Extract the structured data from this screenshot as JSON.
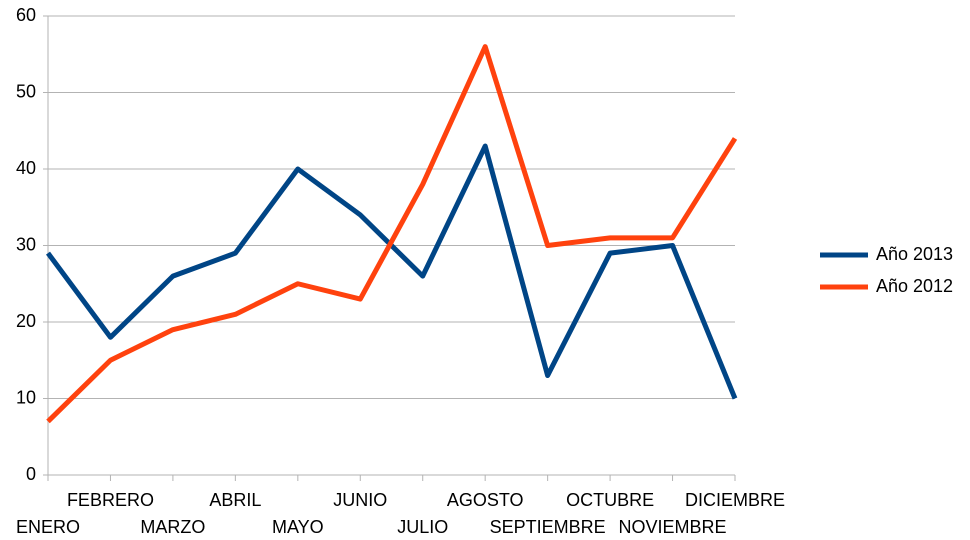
{
  "chart_data": {
    "type": "line",
    "categories": [
      "ENERO",
      "FEBRERO",
      "MARZO",
      "ABRIL",
      "MAYO",
      "JUNIO",
      "JULIO",
      "AGOSTO",
      "SEPTIEMBRE",
      "OCTUBRE",
      "NOVIEMBRE",
      "DICIEMBRE"
    ],
    "series": [
      {
        "name": "Año 2013",
        "color": "#004586",
        "values": [
          29,
          18,
          26,
          29,
          40,
          34,
          26,
          43,
          13,
          29,
          30,
          10
        ]
      },
      {
        "name": "Año 2012",
        "color": "#ff420e",
        "values": [
          7,
          15,
          19,
          21,
          25,
          23,
          38,
          56,
          30,
          31,
          31,
          44
        ]
      }
    ],
    "ylim": [
      0,
      60
    ],
    "yticks": [
      0,
      10,
      20,
      30,
      40,
      50,
      60
    ],
    "grid": true,
    "legend": "right"
  }
}
